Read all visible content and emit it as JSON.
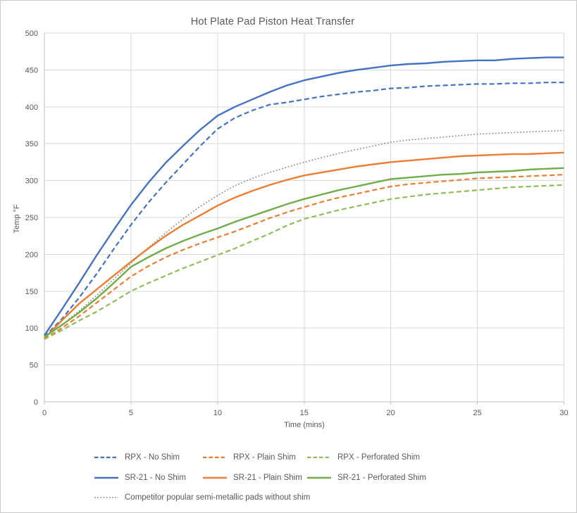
{
  "chart_data": {
    "type": "line",
    "title": "Hot Plate Pad Piston Heat Transfer",
    "xlabel": "Time (mins)",
    "ylabel": "Temp °F",
    "xlim": [
      0,
      30
    ],
    "ylim": [
      0,
      500
    ],
    "xticks": [
      0,
      5,
      10,
      15,
      20,
      25,
      30
    ],
    "yticks": [
      0,
      50,
      100,
      150,
      200,
      250,
      300,
      350,
      400,
      450,
      500
    ],
    "grid": true,
    "legend_position": "bottom-left",
    "x": [
      0,
      1,
      2,
      3,
      4,
      5,
      6,
      7,
      8,
      9,
      10,
      11,
      12,
      13,
      14,
      15,
      16,
      17,
      18,
      19,
      20,
      21,
      22,
      23,
      24,
      25,
      26,
      27,
      28,
      29,
      30
    ],
    "series": [
      {
        "name": "RPX - No Shim",
        "color": "#4472C4",
        "style": "dashed",
        "values": [
          88,
          112,
          141,
          173,
          207,
          240,
          270,
          297,
          322,
          347,
          370,
          385,
          395,
          403,
          406,
          410,
          414,
          417,
          420,
          422,
          425,
          426,
          428,
          429,
          430,
          431,
          431,
          432,
          432,
          433,
          433
        ]
      },
      {
        "name": "RPX - Plain Shim",
        "color": "#ED7D31",
        "style": "dashed",
        "values": [
          85,
          100,
          116,
          134,
          152,
          170,
          184,
          196,
          206,
          215,
          223,
          231,
          240,
          249,
          257,
          264,
          271,
          277,
          282,
          287,
          292,
          295,
          297,
          299,
          301,
          303,
          304,
          305,
          306,
          307,
          308
        ]
      },
      {
        "name": "RPX - Perforated Shim",
        "color": "#8EBE5A",
        "style": "dashed",
        "values": [
          85,
          97,
          110,
          122,
          136,
          150,
          161,
          171,
          181,
          190,
          199,
          208,
          218,
          228,
          239,
          248,
          254,
          260,
          265,
          270,
          275,
          278,
          281,
          283,
          285,
          287,
          289,
          291,
          292,
          293,
          294
        ]
      },
      {
        "name": "SR-21 - No Shim",
        "color": "#4472C4",
        "style": "solid",
        "values": [
          90,
          125,
          161,
          198,
          233,
          267,
          297,
          324,
          347,
          369,
          388,
          400,
          410,
          420,
          429,
          436,
          441,
          446,
          450,
          453,
          456,
          458,
          459,
          461,
          462,
          463,
          463,
          465,
          466,
          467,
          467
        ]
      },
      {
        "name": "SR-21 - Plain Shim",
        "color": "#ED7D31",
        "style": "solid",
        "values": [
          86,
          110,
          133,
          152,
          171,
          190,
          208,
          225,
          240,
          253,
          266,
          277,
          286,
          294,
          301,
          307,
          311,
          315,
          319,
          322,
          325,
          327,
          329,
          331,
          333,
          334,
          335,
          336,
          336,
          337,
          338
        ]
      },
      {
        "name": "SR-21 - Perforated Shim",
        "color": "#70AD47",
        "style": "solid",
        "values": [
          88,
          104,
          121,
          140,
          161,
          183,
          196,
          208,
          218,
          227,
          235,
          244,
          252,
          260,
          268,
          275,
          281,
          287,
          292,
          297,
          302,
          304,
          306,
          308,
          309,
          311,
          312,
          313,
          315,
          316,
          317
        ]
      },
      {
        "name": "Competitor popular semi-metallic pads without shim",
        "color": "#8C8C8C",
        "style": "dotted",
        "values": [
          87,
          104,
          123,
          144,
          166,
          188,
          209,
          229,
          248,
          265,
          280,
          293,
          303,
          311,
          318,
          325,
          331,
          337,
          342,
          347,
          352,
          355,
          357,
          359,
          361,
          363,
          364,
          365,
          366,
          367,
          368
        ]
      }
    ],
    "style_colors": {
      "gridline": "#D9D9D9",
      "axis_line": "#BFBFBF",
      "text": "#595959"
    }
  }
}
